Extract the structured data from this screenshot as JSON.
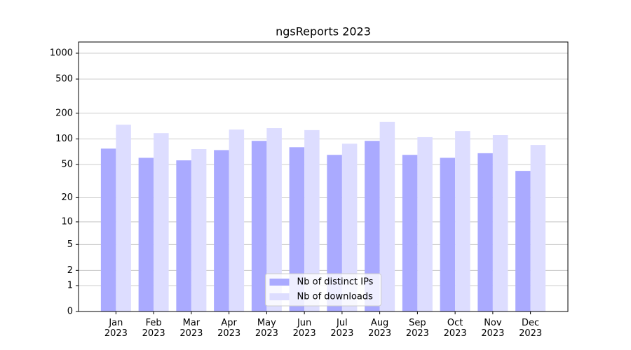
{
  "chart_data": {
    "type": "bar",
    "title": "ngsReports 2023",
    "categories": [
      "Jan\n2023",
      "Feb\n2023",
      "Mar\n2023",
      "Apr\n2023",
      "May\n2023",
      "Jun\n2023",
      "Jul\n2023",
      "Aug\n2023",
      "Sep\n2023",
      "Oct\n2023",
      "Nov\n2023",
      "Dec\n2023"
    ],
    "series": [
      {
        "name": "Nb of distinct IPs",
        "color": "#aaaaff",
        "values": [
          77,
          60,
          56,
          74,
          95,
          80,
          65,
          95,
          65,
          60,
          68,
          42
        ]
      },
      {
        "name": "Nb of downloads",
        "color": "#ddddff",
        "values": [
          147,
          117,
          76,
          129,
          134,
          127,
          88,
          159,
          105,
          124,
          111,
          85
        ]
      }
    ],
    "yscale": "log1p",
    "ylim": [
      0,
      1350
    ],
    "yticks": [
      0,
      1,
      2,
      5,
      10,
      20,
      50,
      100,
      200,
      500,
      1000
    ],
    "grid": true,
    "legend": "lower center"
  }
}
